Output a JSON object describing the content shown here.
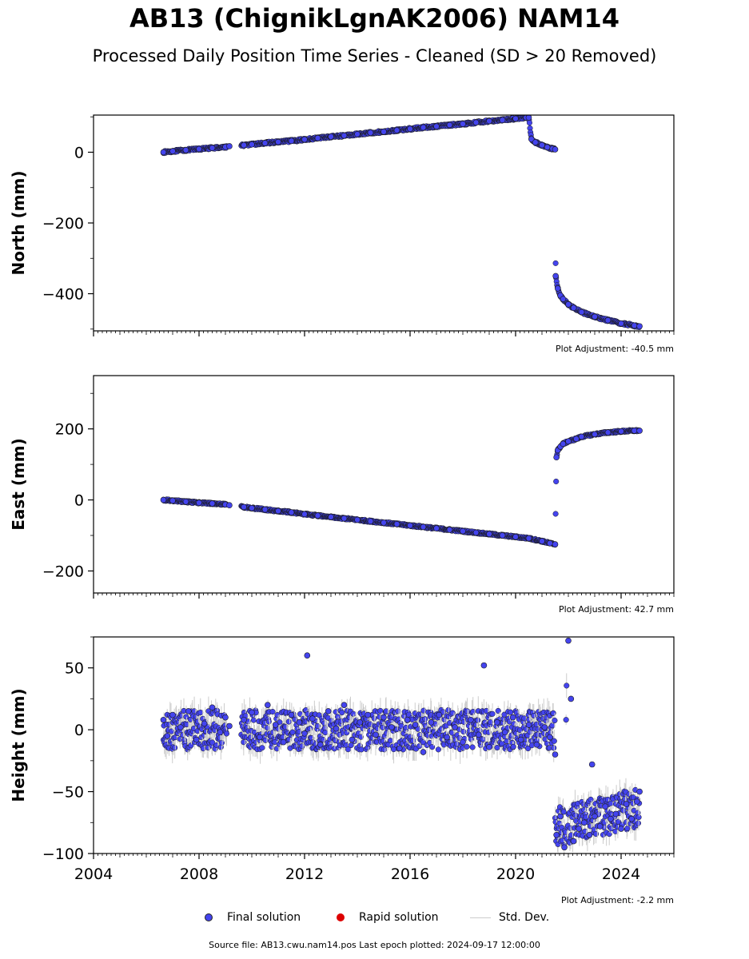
{
  "title": "AB13 (ChignikLgnAK2006) NAM14",
  "subtitle": "Processed Daily Position Time Series - Cleaned (SD > 20 Removed)",
  "footer": "Source file: AB13.cwu.nam14.pos  Last epoch plotted: 2024-09-17 12:00:00",
  "legend": {
    "final": "Final solution",
    "rapid": "Rapid solution",
    "std": "Std. Dev."
  },
  "colors": {
    "final": "#4444ee",
    "rapid": "#dd0000",
    "std": "#cccccc",
    "marker_edge": "#1a1a1a"
  },
  "chart_data": [
    {
      "type": "scatter",
      "ylabel": "North (mm)",
      "adjustment": "Plot Adjustment: -40.5 mm",
      "xlim": [
        2004,
        2026
      ],
      "ylim": [
        -505,
        105
      ],
      "yticks": [
        0,
        -200,
        -400
      ],
      "ytick_labels": [
        "0",
        "−200",
        "−400"
      ],
      "series": [
        {
          "x": [
            2006.65,
            2007.0,
            2007.5,
            2008.0,
            2008.5,
            2009.0,
            2009.15,
            2009.7,
            2010.0,
            2010.5,
            2011.0,
            2011.5,
            2012.0,
            2012.5,
            2013.0,
            2013.5,
            2014.0,
            2014.5,
            2015.0,
            2015.5,
            2016.0,
            2016.5,
            2017.0,
            2017.5,
            2018.0,
            2018.5,
            2019.0,
            2019.5,
            2020.0,
            2020.4,
            2020.5,
            2020.6,
            2020.75,
            2021.0,
            2021.2,
            2021.4,
            2021.5,
            2021.52,
            2021.6,
            2021.7,
            2021.8,
            2022.0,
            2022.2,
            2022.5,
            2023.0,
            2023.5,
            2024.0,
            2024.5,
            2024.7
          ],
          "y": [
            0,
            3,
            6,
            9,
            12,
            15,
            17,
            20,
            22,
            26,
            29,
            32,
            36,
            40,
            44,
            47,
            51,
            55,
            58,
            62,
            66,
            70,
            73,
            77,
            80,
            84,
            88,
            91,
            95,
            98,
            98,
            37,
            28,
            20,
            14,
            10,
            8,
            -350,
            -385,
            -405,
            -415,
            -430,
            -440,
            -452,
            -465,
            -475,
            -484,
            -490,
            -492
          ]
        }
      ]
    },
    {
      "type": "scatter",
      "ylabel": "East (mm)",
      "adjustment": "Plot Adjustment: 42.7 mm",
      "xlim": [
        2004,
        2026
      ],
      "ylim": [
        -262,
        350
      ],
      "yticks": [
        200,
        0,
        -200
      ],
      "ytick_labels": [
        "200",
        "0",
        "−200"
      ],
      "series": [
        {
          "x": [
            2006.65,
            2007.0,
            2007.5,
            2008.0,
            2008.5,
            2009.0,
            2009.15,
            2009.7,
            2010.0,
            2010.5,
            2011.0,
            2011.5,
            2012.0,
            2012.5,
            2013.0,
            2013.5,
            2014.0,
            2014.5,
            2015.0,
            2015.5,
            2016.0,
            2016.5,
            2017.0,
            2017.5,
            2018.0,
            2018.5,
            2019.0,
            2019.5,
            2020.0,
            2020.5,
            2021.0,
            2021.3,
            2021.5,
            2021.55,
            2021.6,
            2021.7,
            2021.8,
            2022.0,
            2022.3,
            2022.5,
            2023.0,
            2023.5,
            2024.0,
            2024.5,
            2024.7
          ],
          "y": [
            0,
            -2,
            -5,
            -8,
            -10,
            -13,
            -15,
            -20,
            -23,
            -27,
            -31,
            -35,
            -40,
            -44,
            -48,
            -52,
            -56,
            -60,
            -64,
            -68,
            -72,
            -76,
            -80,
            -84,
            -88,
            -92,
            -96,
            -100,
            -104,
            -108,
            -116,
            -122,
            -125,
            120,
            140,
            150,
            158,
            165,
            172,
            178,
            185,
            190,
            193,
            195,
            195
          ]
        }
      ]
    },
    {
      "type": "scatter",
      "ylabel": "Height (mm)",
      "adjustment": "Plot Adjustment: -2.2 mm",
      "xlim": [
        2004,
        2026
      ],
      "xticks": [
        2004,
        2008,
        2012,
        2016,
        2020,
        2024
      ],
      "xtick_labels": [
        "2004",
        "2008",
        "2012",
        "2016",
        "2020",
        "2024"
      ],
      "ylim": [
        -100,
        75
      ],
      "yticks": [
        50,
        0,
        -50,
        -100
      ],
      "ytick_labels": [
        "50",
        "0",
        "−50",
        "−100"
      ],
      "series": [
        {
          "x": [
            2006.65,
            2006.8,
            2007.0,
            2007.3,
            2007.6,
            2007.9,
            2008.2,
            2008.5,
            2008.8,
            2009.0,
            2009.15,
            2009.7,
            2010.0,
            2010.3,
            2010.6,
            2010.9,
            2011.2,
            2011.5,
            2011.8,
            2012.0,
            2012.1,
            2012.3,
            2012.6,
            2012.9,
            2013.2,
            2013.5,
            2013.8,
            2014.1,
            2014.4,
            2014.7,
            2015.0,
            2015.3,
            2015.6,
            2015.9,
            2016.2,
            2016.5,
            2016.8,
            2017.1,
            2017.4,
            2017.7,
            2018.0,
            2018.3,
            2018.6,
            2018.8,
            2019.0,
            2019.3,
            2019.6,
            2019.9,
            2020.2,
            2020.5,
            2020.8,
            2021.1,
            2021.3,
            2021.5,
            2021.55,
            2021.7,
            2021.85,
            2022.0,
            2022.1,
            2022.2,
            2022.4,
            2022.6,
            2022.8,
            2022.9,
            2023.0,
            2023.2,
            2023.4,
            2023.6,
            2023.8,
            2024.0,
            2024.2,
            2024.4,
            2024.6,
            2024.7
          ],
          "y": [
            8,
            -5,
            12,
            2,
            15,
            -8,
            5,
            18,
            -2,
            10,
            3,
            8,
            14,
            -6,
            20,
            4,
            -10,
            12,
            6,
            -3,
            60,
            9,
            -12,
            15,
            1,
            20,
            -8,
            6,
            12,
            -4,
            10,
            2,
            -15,
            8,
            4,
            -18,
            6,
            12,
            -6,
            2,
            -10,
            8,
            -4,
            52,
            -14,
            6,
            -2,
            10,
            -8,
            4,
            -12,
            2,
            -6,
            -20,
            -85,
            -70,
            -95,
            72,
            25,
            -90,
            -80,
            -75,
            -85,
            -28,
            -70,
            -78,
            -62,
            -72,
            -68,
            -80,
            -60,
            -72,
            -58,
            -50
          ]
        }
      ]
    }
  ]
}
